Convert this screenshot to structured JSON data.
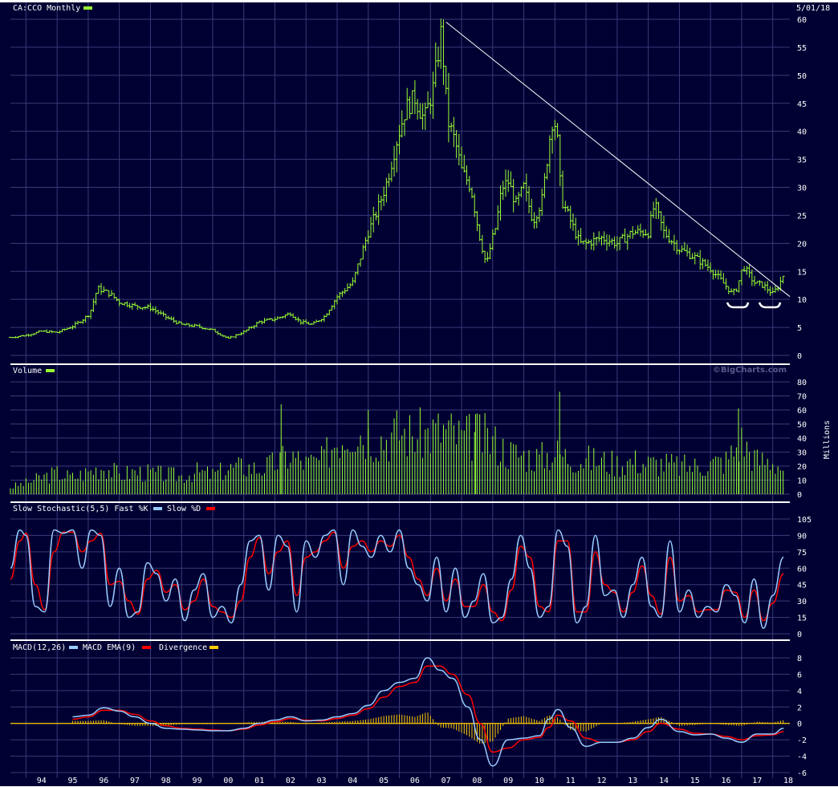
{
  "colors": {
    "background": "#000033",
    "grid": "#3b3b78",
    "price": "#99ff33",
    "volume": "#99ff33",
    "fast_k": "#99ccff",
    "slow_d": "#ff0000",
    "macd": "#99ccff",
    "macd_ema": "#ff0000",
    "divergence": "#ffcc00",
    "trendline": "#ffffff",
    "text": "#ffffff"
  },
  "header": {
    "symbol_label": "CA:CCO Monthly",
    "date": "5/01/18",
    "watermark": "©BigCharts.com"
  },
  "chart_data": [
    {
      "id": "price",
      "type": "ohlc",
      "title": "CA:CCO Monthly",
      "ylim": [
        0,
        60
      ],
      "yticks": [
        0,
        5,
        10,
        15,
        20,
        25,
        30,
        35,
        40,
        45,
        50,
        55,
        60
      ],
      "x": [
        1993.5,
        1994.0,
        1994.5,
        1995.0,
        1995.5,
        1995.85,
        1996.05,
        1996.3,
        1996.7,
        1997.0,
        1997.5,
        1998.0,
        1998.5,
        1999.0,
        1999.5,
        2000.0,
        2000.5,
        2001.0,
        2001.5,
        2002.0,
        2002.5,
        2002.8,
        2003.2,
        2003.6,
        2004.0,
        2004.5,
        2005.0,
        2005.3,
        2005.6,
        2005.9,
        2006.2,
        2006.5,
        2006.8,
        2007.1,
        2007.35,
        2007.55,
        2007.8,
        2008.0,
        2008.3,
        2008.55,
        2008.8,
        2008.95,
        2009.1,
        2009.3,
        2009.5,
        2009.75,
        2010.0,
        2010.3,
        2010.6,
        2010.9,
        2011.05,
        2011.2,
        2011.5,
        2011.8,
        2012.0,
        2012.5,
        2013.0,
        2013.5,
        2014.0,
        2014.2,
        2014.5,
        2015.0,
        2015.5,
        2016.0,
        2016.4,
        2016.7,
        2016.85,
        2017.05,
        2017.4,
        2017.7,
        2018.0,
        2018.2,
        2018.35
      ],
      "close": [
        3.2,
        3.6,
        4.3,
        4.1,
        5.2,
        6.5,
        7.5,
        12.0,
        11.0,
        9.5,
        8.8,
        8.5,
        6.8,
        5.5,
        5.2,
        4.5,
        3.0,
        4.2,
        6.0,
        6.5,
        7.5,
        6.0,
        5.5,
        7.0,
        10.5,
        13.0,
        22.0,
        26.0,
        31.0,
        38.0,
        44.0,
        46.0,
        42.0,
        48.0,
        58.0,
        42.0,
        38.0,
        33.0,
        30.0,
        22.0,
        16.0,
        20.0,
        23.0,
        30.0,
        31.0,
        27.0,
        30.0,
        24.0,
        28.0,
        42.0,
        41.0,
        28.0,
        24.0,
        20.0,
        20.0,
        21.0,
        20.0,
        22.0,
        22.0,
        27.0,
        22.0,
        19.0,
        17.5,
        15.5,
        13.0,
        11.0,
        12.0,
        16.0,
        13.0,
        12.5,
        11.0,
        12.5,
        14.5
      ],
      "trendline": {
        "from": [
          2007.5,
          59.5
        ],
        "to": [
          2018.55,
          10.5
        ]
      },
      "annotations": [
        "bracket-2016.8",
        "bracket-2017.9"
      ]
    },
    {
      "id": "volume",
      "type": "bar",
      "title": "Volume",
      "ylabel": "Millions",
      "ylim": [
        0,
        80
      ],
      "yticks": [
        0,
        10,
        20,
        30,
        40,
        50,
        60,
        70,
        80
      ],
      "x": [
        1993.5,
        1994.0,
        1994.5,
        1995.0,
        1995.5,
        1996.0,
        1996.5,
        1997.0,
        1997.5,
        1998.0,
        1998.5,
        1999.0,
        1999.5,
        2000.0,
        2000.5,
        2001.0,
        2001.5,
        2002.0,
        2002.5,
        2003.0,
        2003.5,
        2004.0,
        2004.5,
        2005.0,
        2005.5,
        2006.0,
        2006.5,
        2007.0,
        2007.5,
        2008.0,
        2008.5,
        2009.0,
        2009.5,
        2010.0,
        2010.5,
        2011.0,
        2011.5,
        2012.0,
        2012.5,
        2013.0,
        2013.5,
        2014.0,
        2014.5,
        2015.0,
        2015.5,
        2016.0,
        2016.5,
        2017.0,
        2017.5,
        2018.0,
        2018.35
      ],
      "values": [
        5,
        8,
        12,
        15,
        12,
        16,
        20,
        14,
        16,
        15,
        14,
        13,
        16,
        14,
        18,
        20,
        18,
        22,
        28,
        22,
        24,
        40,
        48,
        42,
        40,
        45,
        42,
        44,
        46,
        40,
        42,
        38,
        30,
        28,
        26,
        30,
        26,
        25,
        24,
        22,
        24,
        22,
        22,
        20,
        20,
        22,
        24,
        38,
        24,
        24,
        18
      ],
      "spikes": [
        {
          "x": 2002.2,
          "value": 64
        },
        {
          "x": 2005.0,
          "value": 60
        },
        {
          "x": 2008.45,
          "value": 57
        },
        {
          "x": 2011.15,
          "value": 73
        },
        {
          "x": 2016.9,
          "value": 61
        }
      ]
    },
    {
      "id": "stochastic",
      "type": "line",
      "title": "Slow Stochastic(5,5) Fast %K",
      "ylim": [
        0,
        105
      ],
      "yticks": [
        0,
        15,
        30,
        45,
        60,
        75,
        90,
        105
      ],
      "series": [
        {
          "name": "Fast %K",
          "x": [
            1993.5,
            1993.8,
            1994.0,
            1994.3,
            1994.6,
            1994.9,
            1995.2,
            1995.5,
            1995.8,
            1996.1,
            1996.4,
            1996.7,
            1997.0,
            1997.3,
            1997.6,
            1997.9,
            1998.2,
            1998.5,
            1998.8,
            1999.1,
            1999.4,
            1999.7,
            2000.0,
            2000.3,
            2000.6,
            2000.9,
            2001.2,
            2001.5,
            2001.8,
            2002.1,
            2002.4,
            2002.7,
            2003.0,
            2003.3,
            2003.6,
            2003.9,
            2004.2,
            2004.5,
            2004.8,
            2005.1,
            2005.4,
            2005.7,
            2006.0,
            2006.3,
            2006.6,
            2006.9,
            2007.2,
            2007.5,
            2007.8,
            2008.1,
            2008.4,
            2008.7,
            2009.0,
            2009.3,
            2009.6,
            2009.9,
            2010.2,
            2010.5,
            2010.8,
            2011.1,
            2011.4,
            2011.7,
            2012.0,
            2012.3,
            2012.6,
            2012.9,
            2013.2,
            2013.5,
            2013.8,
            2014.1,
            2014.4,
            2014.7,
            2015.0,
            2015.3,
            2015.6,
            2015.9,
            2016.2,
            2016.5,
            2016.8,
            2017.1,
            2017.4,
            2017.7,
            2018.0,
            2018.35
          ],
          "values": [
            60,
            95,
            90,
            25,
            20,
            95,
            92,
            95,
            60,
            95,
            90,
            25,
            60,
            15,
            20,
            65,
            55,
            30,
            50,
            12,
            40,
            55,
            15,
            25,
            10,
            45,
            85,
            90,
            40,
            90,
            80,
            20,
            85,
            70,
            90,
            95,
            45,
            95,
            80,
            70,
            90,
            75,
            95,
            60,
            45,
            30,
            70,
            20,
            60,
            15,
            30,
            55,
            10,
            15,
            50,
            90,
            60,
            15,
            25,
            95,
            80,
            10,
            25,
            90,
            35,
            40,
            15,
            45,
            70,
            25,
            15,
            85,
            20,
            40,
            15,
            25,
            20,
            45,
            35,
            10,
            50,
            5,
            35,
            70
          ]
        },
        {
          "name": "Slow %D",
          "x": [
            1993.5,
            1993.8,
            1994.0,
            1994.3,
            1994.6,
            1994.9,
            1995.2,
            1995.5,
            1995.8,
            1996.1,
            1996.4,
            1996.7,
            1997.0,
            1997.3,
            1997.6,
            1997.9,
            1998.2,
            1998.5,
            1998.8,
            1999.1,
            1999.4,
            1999.7,
            2000.0,
            2000.3,
            2000.6,
            2000.9,
            2001.2,
            2001.5,
            2001.8,
            2002.1,
            2002.4,
            2002.7,
            2003.0,
            2003.3,
            2003.6,
            2003.9,
            2004.2,
            2004.5,
            2004.8,
            2005.1,
            2005.4,
            2005.7,
            2006.0,
            2006.3,
            2006.6,
            2006.9,
            2007.2,
            2007.5,
            2007.8,
            2008.1,
            2008.4,
            2008.7,
            2009.0,
            2009.3,
            2009.6,
            2009.9,
            2010.2,
            2010.5,
            2010.8,
            2011.1,
            2011.4,
            2011.7,
            2012.0,
            2012.3,
            2012.6,
            2012.9,
            2013.2,
            2013.5,
            2013.8,
            2014.1,
            2014.4,
            2014.7,
            2015.0,
            2015.3,
            2015.6,
            2015.9,
            2016.2,
            2016.5,
            2016.8,
            2017.1,
            2017.4,
            2017.7,
            2018.0,
            2018.35
          ],
          "values": [
            50,
            85,
            92,
            45,
            22,
            75,
            93,
            93,
            75,
            85,
            92,
            45,
            48,
            30,
            18,
            50,
            58,
            38,
            45,
            22,
            30,
            50,
            25,
            20,
            15,
            30,
            70,
            88,
            55,
            75,
            85,
            35,
            70,
            75,
            85,
            93,
            60,
            80,
            85,
            75,
            85,
            80,
            90,
            70,
            50,
            35,
            60,
            30,
            50,
            25,
            25,
            45,
            20,
            12,
            40,
            80,
            70,
            25,
            20,
            85,
            85,
            20,
            20,
            75,
            45,
            38,
            20,
            38,
            62,
            35,
            18,
            70,
            30,
            35,
            20,
            22,
            22,
            40,
            38,
            15,
            40,
            12,
            28,
            55
          ]
        }
      ]
    },
    {
      "id": "macd",
      "type": "line",
      "title": "MACD(12,26) MACD EMA(9) Divergence",
      "ylim": [
        -6,
        8
      ],
      "yticks": [
        -6,
        -4,
        -2,
        0,
        2,
        4,
        6,
        8
      ],
      "series": [
        {
          "name": "MACD",
          "x": [
            1995.5,
            1996.0,
            1996.5,
            1997.0,
            1997.5,
            1998.0,
            1998.5,
            1999.0,
            1999.5,
            2000.0,
            2000.5,
            2001.0,
            2001.5,
            2002.0,
            2002.5,
            2003.0,
            2003.5,
            2004.0,
            2004.5,
            2005.0,
            2005.5,
            2006.0,
            2006.5,
            2006.9,
            2007.3,
            2007.7,
            2008.2,
            2008.6,
            2009.0,
            2009.5,
            2010.0,
            2010.5,
            2010.8,
            2011.1,
            2011.5,
            2012.0,
            2012.5,
            2013.0,
            2013.5,
            2014.0,
            2014.4,
            2015.0,
            2015.5,
            2016.0,
            2016.5,
            2017.0,
            2017.5,
            2018.0,
            2018.35
          ],
          "values": [
            0.8,
            1.0,
            1.9,
            1.5,
            0.8,
            0.0,
            -0.6,
            -0.7,
            -0.8,
            -0.9,
            -0.9,
            -0.6,
            0.0,
            0.4,
            0.8,
            0.3,
            0.4,
            0.8,
            1.2,
            2.2,
            4.0,
            5.0,
            5.5,
            8.0,
            6.5,
            5.5,
            2.0,
            -2.0,
            -5.2,
            -2.0,
            -1.8,
            -1.5,
            0.5,
            1.7,
            -0.5,
            -2.8,
            -2.3,
            -2.3,
            -1.8,
            -0.5,
            0.5,
            -1.0,
            -1.4,
            -1.3,
            -1.8,
            -2.3,
            -1.3,
            -1.3,
            -0.6
          ]
        },
        {
          "name": "MACD EMA(9)",
          "x": [
            1995.5,
            1996.0,
            1996.5,
            1997.0,
            1997.5,
            1998.0,
            1998.5,
            1999.0,
            1999.5,
            2000.0,
            2000.5,
            2001.0,
            2001.5,
            2002.0,
            2002.5,
            2003.0,
            2003.5,
            2004.0,
            2004.5,
            2005.0,
            2005.5,
            2006.0,
            2006.5,
            2006.9,
            2007.3,
            2007.7,
            2008.2,
            2008.6,
            2009.0,
            2009.5,
            2010.0,
            2010.5,
            2010.8,
            2011.1,
            2011.5,
            2012.0,
            2012.5,
            2013.0,
            2013.5,
            2014.0,
            2014.4,
            2015.0,
            2015.5,
            2016.0,
            2016.5,
            2017.0,
            2017.5,
            2018.0,
            2018.35
          ],
          "values": [
            0.5,
            0.8,
            1.6,
            1.6,
            1.1,
            0.3,
            -0.3,
            -0.6,
            -0.7,
            -0.8,
            -0.9,
            -0.7,
            -0.2,
            0.2,
            0.6,
            0.4,
            0.3,
            0.6,
            1.0,
            1.8,
            3.2,
            4.5,
            5.0,
            7.0,
            7.0,
            6.0,
            3.5,
            0.0,
            -3.5,
            -3.0,
            -2.0,
            -1.7,
            -0.5,
            1.0,
            0.3,
            -1.8,
            -2.3,
            -2.3,
            -2.0,
            -1.0,
            0.0,
            -0.7,
            -1.2,
            -1.3,
            -1.6,
            -2.0,
            -1.5,
            -1.4,
            -1.0
          ]
        },
        {
          "name": "Divergence",
          "x": [
            1995.5,
            1996.0,
            1996.5,
            1997.0,
            1997.5,
            1998.0,
            1998.5,
            1999.0,
            1999.5,
            2000.0,
            2000.5,
            2001.0,
            2001.5,
            2002.0,
            2002.5,
            2003.0,
            2003.5,
            2004.0,
            2004.5,
            2005.0,
            2005.5,
            2006.0,
            2006.5,
            2006.9,
            2007.3,
            2007.7,
            2008.2,
            2008.6,
            2009.0,
            2009.5,
            2010.0,
            2010.5,
            2010.8,
            2011.1,
            2011.5,
            2012.0,
            2012.5,
            2013.0,
            2013.5,
            2014.0,
            2014.4,
            2015.0,
            2015.5,
            2016.0,
            2016.5,
            2017.0,
            2017.5,
            2018.0,
            2018.35
          ],
          "values": [
            0.3,
            0.3,
            0.4,
            -0.1,
            -0.3,
            -0.3,
            -0.3,
            -0.1,
            -0.1,
            -0.1,
            0.0,
            0.1,
            0.2,
            0.2,
            0.2,
            -0.1,
            0.1,
            0.2,
            0.3,
            0.5,
            0.9,
            1.1,
            0.8,
            1.4,
            -0.5,
            -0.6,
            -1.5,
            -2.5,
            -2.2,
            0.6,
            0.9,
            0.3,
            1.0,
            0.7,
            -0.8,
            -1.0,
            0.0,
            0.0,
            0.2,
            0.5,
            0.8,
            -0.3,
            -0.2,
            0.0,
            -0.2,
            -0.3,
            0.2,
            0.1,
            0.4
          ]
        }
      ]
    }
  ],
  "x_axis": {
    "range": [
      1993.5,
      2018.55
    ],
    "ticks": [
      1994,
      1995,
      1996,
      1997,
      1998,
      1999,
      2000,
      2001,
      2002,
      2003,
      2004,
      2005,
      2006,
      2007,
      2008,
      2009,
      2010,
      2011,
      2012,
      2013,
      2014,
      2015,
      2016,
      2017,
      2018
    ],
    "tick_labels": [
      "94",
      "95",
      "96",
      "97",
      "98",
      "99",
      "00",
      "01",
      "02",
      "03",
      "04",
      "05",
      "06",
      "07",
      "08",
      "09",
      "10",
      "11",
      "12",
      "13",
      "14",
      "15",
      "16",
      "17",
      "18"
    ]
  },
  "legends": {
    "volume": {
      "label": "Volume"
    },
    "stochastic": {
      "label": "Slow Stochastic(5,5) Fast %K",
      "label2": "Slow %D"
    },
    "macd": {
      "label": "MACD(12,26)",
      "label2": "MACD EMA(9)",
      "label3": "Divergence"
    }
  }
}
